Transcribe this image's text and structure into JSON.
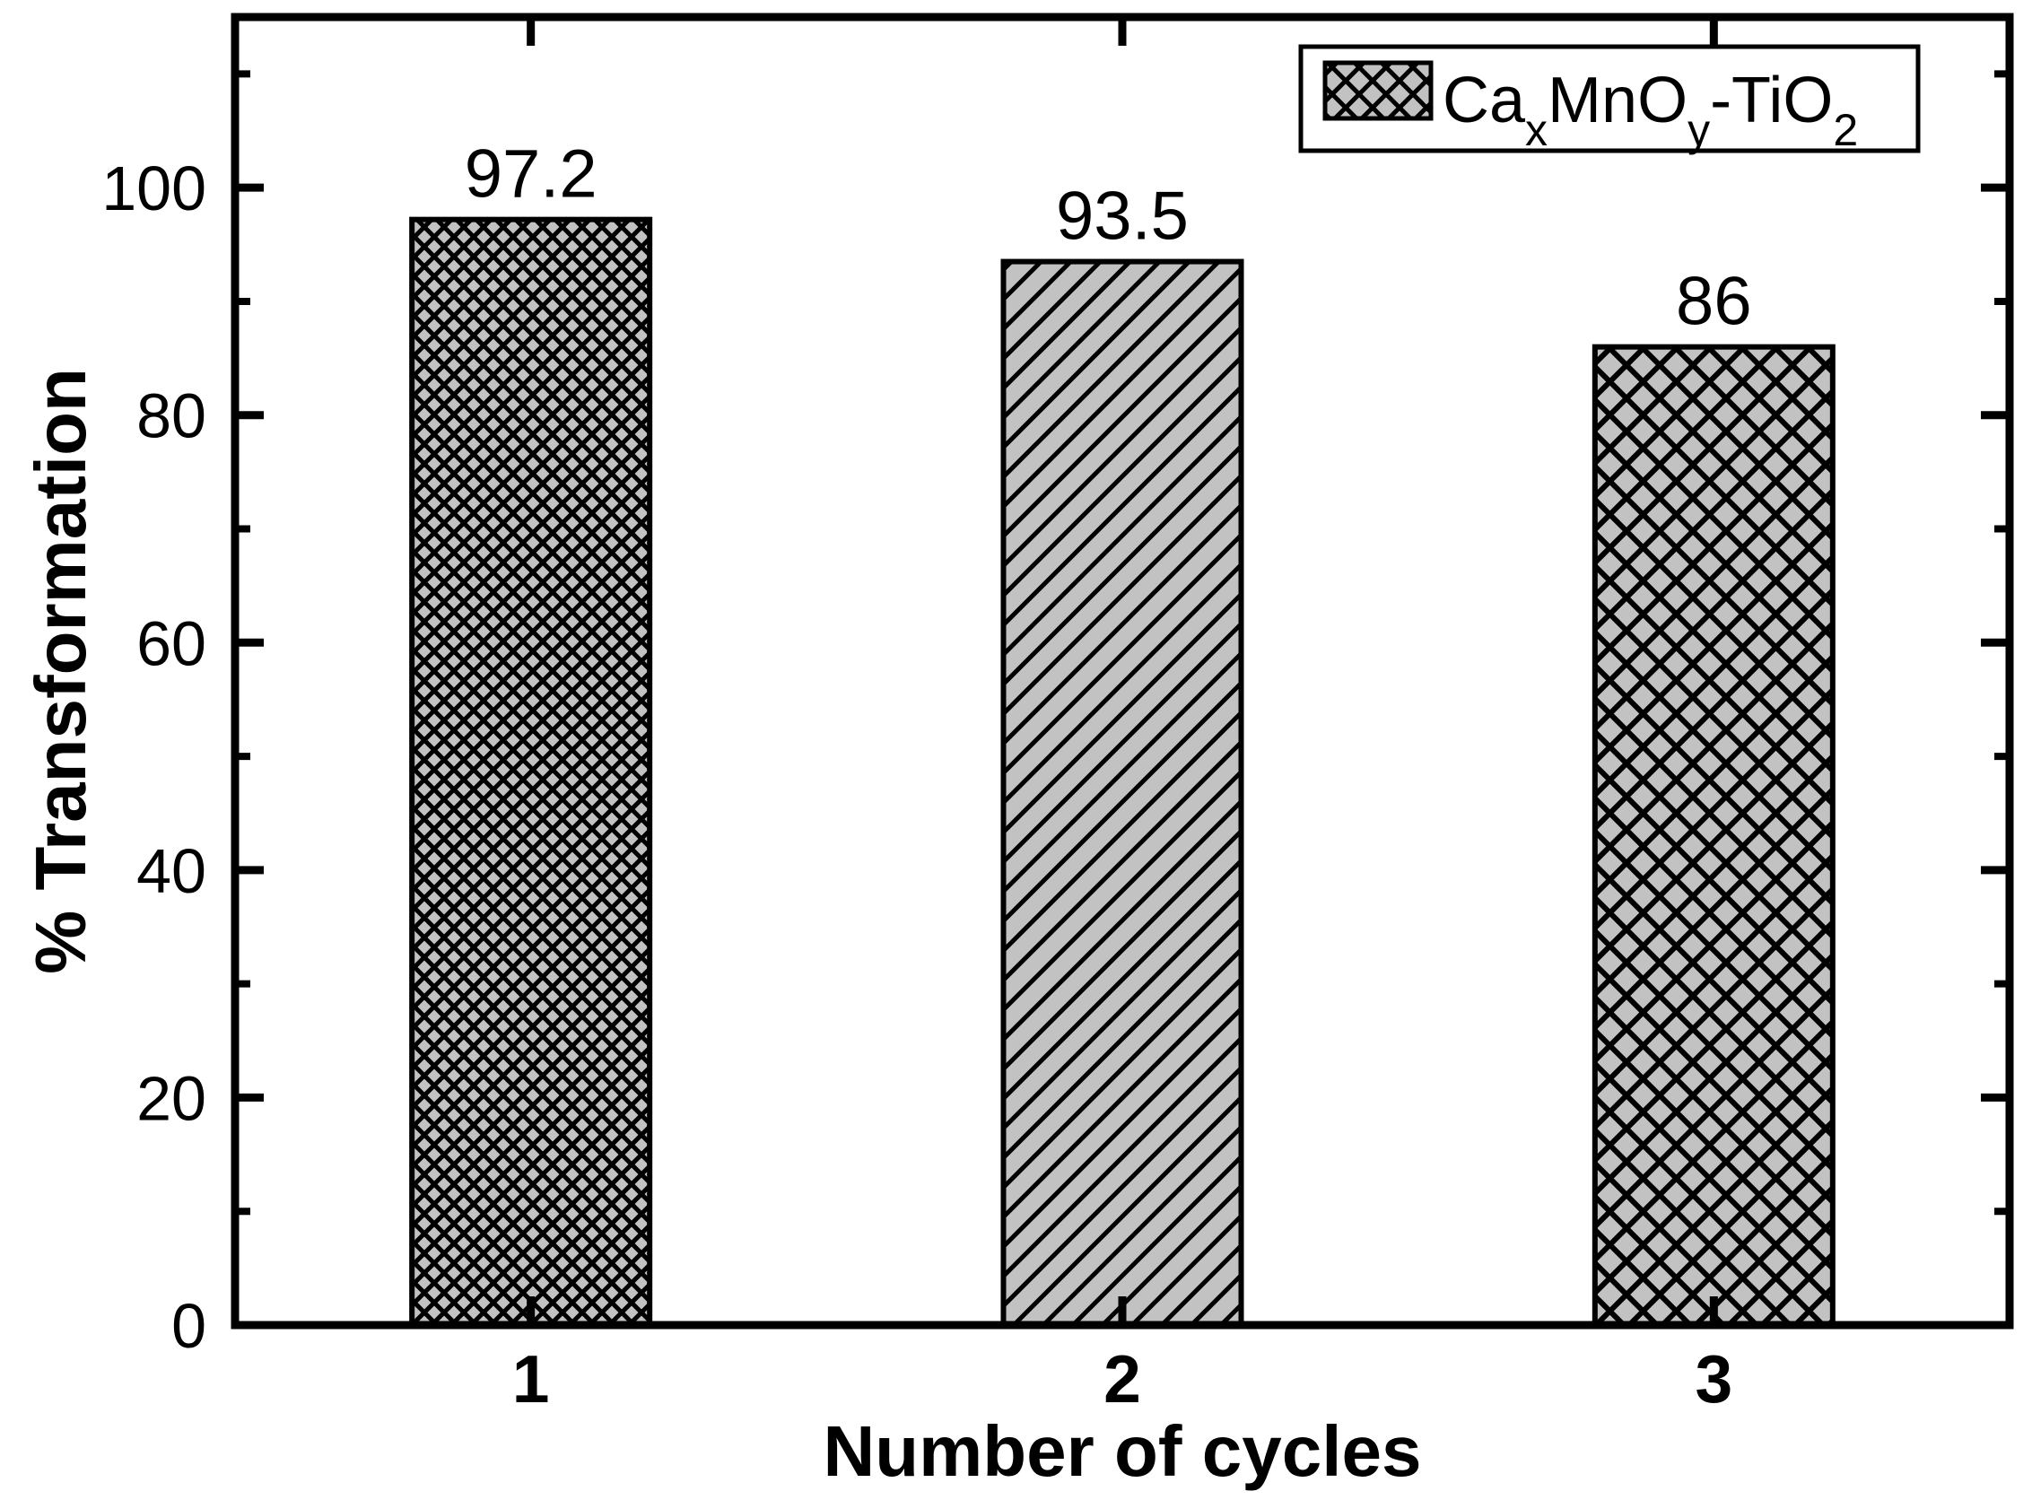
{
  "chart_data": {
    "type": "bar",
    "title": "",
    "xlabel": "Number of cycles",
    "ylabel": "% Transformation",
    "categories": [
      "1",
      "2",
      "3"
    ],
    "values": [
      97.2,
      93.5,
      86
    ],
    "data_labels": [
      "97.2",
      "93.5",
      "86"
    ],
    "bar_hatches": [
      "dense-crosshatch",
      "diagonal",
      "coarse-crosshatch"
    ],
    "bar_fill": "#c2c2c2",
    "line_color": "#000000",
    "background": "#ffffff",
    "ylim": [
      0,
      115
    ],
    "yticks_major": [
      0,
      20,
      40,
      60,
      80,
      100
    ],
    "ytick_labels": [
      "0",
      "20",
      "40",
      "60",
      "80",
      "100"
    ],
    "yticks_minor": [
      10,
      30,
      50,
      70,
      90,
      110
    ],
    "grid": false,
    "tick_direction": "in",
    "mirror_ticks": true,
    "legend": {
      "position": "top-right",
      "entries": [
        {
          "label_plain": "CaxMnOy-TiO2",
          "label_parts": [
            {
              "text": "Ca",
              "sub": false
            },
            {
              "text": "x",
              "sub": true
            },
            {
              "text": "MnO",
              "sub": false
            },
            {
              "text": "y",
              "sub": true
            },
            {
              "text": "-TiO",
              "sub": false
            },
            {
              "text": "2",
              "sub": true
            }
          ],
          "swatch_hatch": "legend-crosshatch"
        }
      ]
    }
  }
}
